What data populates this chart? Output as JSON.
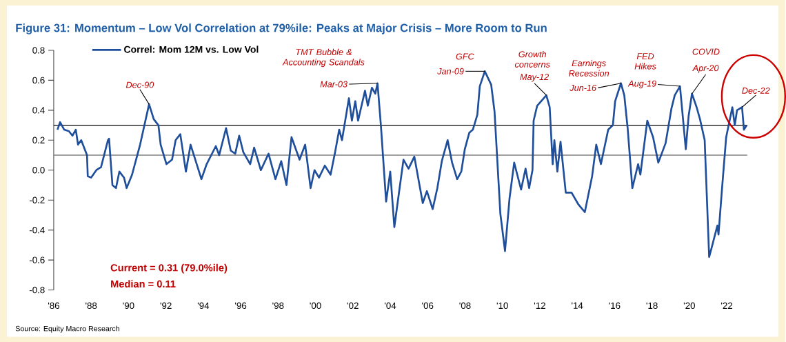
{
  "chart_data": {
    "type": "line",
    "title": "Figure 31: Momentum – Low Vol Correlation at 79%ile: Peaks at Major Crisis – More Room to Run",
    "series": [
      {
        "name": "Correl: Mom 12M vs. Low Vol",
        "color": "#1f4e9a",
        "x": [
          1986.2,
          1986.34,
          1986.56,
          1986.81,
          1987.0,
          1987.18,
          1987.3,
          1987.47,
          1987.78,
          1987.82,
          1988.0,
          1988.28,
          1988.53,
          1988.9,
          1988.96,
          1989.14,
          1989.33,
          1989.51,
          1989.76,
          1989.9,
          1990.19,
          1990.62,
          1991.1,
          1991.35,
          1991.6,
          1991.72,
          1992.03,
          1992.33,
          1992.52,
          1992.77,
          1993.07,
          1993.32,
          1993.9,
          1994.18,
          1994.67,
          1994.85,
          1995.22,
          1995.47,
          1995.71,
          1995.92,
          1996.14,
          1996.51,
          1996.72,
          1997.08,
          1997.49,
          1997.86,
          1998.17,
          1998.45,
          1998.72,
          1999.15,
          1999.45,
          1999.74,
          1999.95,
          2000.19,
          2000.5,
          2000.81,
          2001.05,
          2001.27,
          2001.42,
          2001.79,
          2001.95,
          2002.13,
          2002.28,
          2002.65,
          2002.8,
          2003.02,
          2003.2,
          2003.32,
          2003.5,
          2003.78,
          2004.0,
          2004.22,
          2004.49,
          2004.71,
          2004.98,
          2005.29,
          2005.74,
          2005.96,
          2006.27,
          2006.52,
          2006.76,
          2007.07,
          2007.31,
          2007.58,
          2007.8,
          2007.99,
          2008.23,
          2008.42,
          2008.66,
          2008.79,
          2009.06,
          2009.4,
          2009.58,
          2009.89,
          2010.14,
          2010.38,
          2010.63,
          2011.0,
          2011.24,
          2011.43,
          2011.61,
          2011.67,
          2011.86,
          2012.28,
          2012.35,
          2012.53,
          2012.69,
          2012.78,
          2012.94,
          2013.11,
          2013.39,
          2013.7,
          2014.07,
          2014.41,
          2014.8,
          2015.02,
          2015.27,
          2015.66,
          2015.91,
          2016.03,
          2016.34,
          2016.52,
          2016.7,
          2016.95,
          2017.26,
          2017.38,
          2017.75,
          2018.06,
          2018.34,
          2018.73,
          2019.04,
          2019.22,
          2019.5,
          2019.81,
          2019.96,
          2020.14,
          2020.39,
          2020.57,
          2020.82,
          2021.06,
          2021.19,
          2021.5,
          2021.56,
          2021.75,
          2021.97,
          2022.3,
          2022.43,
          2022.55,
          2022.82,
          2022.92,
          2023.07
        ],
        "values": [
          0.27,
          0.32,
          0.27,
          0.26,
          0.23,
          0.27,
          0.17,
          0.2,
          0.1,
          -0.04,
          -0.05,
          0.0,
          0.02,
          0.2,
          0.21,
          -0.1,
          -0.12,
          -0.01,
          -0.05,
          -0.12,
          -0.03,
          0.17,
          0.44,
          0.34,
          0.3,
          0.17,
          0.04,
          0.07,
          0.2,
          0.24,
          -0.01,
          0.17,
          -0.06,
          0.04,
          0.16,
          0.1,
          0.28,
          0.13,
          0.11,
          0.23,
          0.12,
          0.04,
          0.15,
          0.0,
          0.11,
          -0.06,
          0.06,
          -0.1,
          0.22,
          0.07,
          0.17,
          -0.12,
          0.0,
          -0.05,
          0.03,
          -0.03,
          0.12,
          0.27,
          0.2,
          0.48,
          0.33,
          0.46,
          0.33,
          0.53,
          0.43,
          0.55,
          0.51,
          0.58,
          0.3,
          -0.21,
          -0.01,
          -0.38,
          -0.13,
          0.07,
          0.01,
          0.09,
          -0.22,
          -0.14,
          -0.26,
          -0.12,
          0.06,
          0.2,
          0.05,
          -0.06,
          -0.01,
          0.14,
          0.25,
          0.27,
          0.37,
          0.56,
          0.66,
          0.57,
          0.39,
          -0.29,
          -0.54,
          -0.19,
          0.05,
          -0.13,
          0.01,
          -0.12,
          0.0,
          0.33,
          0.43,
          0.49,
          0.5,
          0.42,
          0.04,
          0.2,
          -0.01,
          0.19,
          -0.15,
          -0.15,
          -0.23,
          -0.28,
          -0.04,
          0.17,
          0.04,
          0.27,
          0.3,
          0.46,
          0.58,
          0.5,
          0.28,
          -0.12,
          0.04,
          -0.03,
          0.33,
          0.22,
          0.05,
          0.18,
          0.41,
          0.5,
          0.56,
          0.14,
          0.36,
          0.51,
          0.42,
          0.34,
          0.2,
          -0.58,
          -0.52,
          -0.37,
          -0.43,
          -0.12,
          0.22,
          0.42,
          0.3,
          0.4,
          0.42,
          0.27,
          0.3
        ]
      }
    ],
    "xlim": [
      1986,
      2023.1
    ],
    "ylim": [
      -0.8,
      0.8
    ],
    "xticks": [
      {
        "value": 1986,
        "label": "'86"
      },
      {
        "value": 1988,
        "label": "'88"
      },
      {
        "value": 1990,
        "label": "'90"
      },
      {
        "value": 1992,
        "label": "'92"
      },
      {
        "value": 1994,
        "label": "'94"
      },
      {
        "value": 1996,
        "label": "'96"
      },
      {
        "value": 1998,
        "label": "'98"
      },
      {
        "value": 2000,
        "label": "'00"
      },
      {
        "value": 2002,
        "label": "'02"
      },
      {
        "value": 2004,
        "label": "'04"
      },
      {
        "value": 2006,
        "label": "'06"
      },
      {
        "value": 2008,
        "label": "'08"
      },
      {
        "value": 2010,
        "label": "'10"
      },
      {
        "value": 2012,
        "label": "'12"
      },
      {
        "value": 2014,
        "label": "'14"
      },
      {
        "value": 2016,
        "label": "'16"
      },
      {
        "value": 2018,
        "label": "'18"
      },
      {
        "value": 2020,
        "label": "'20"
      },
      {
        "value": 2022,
        "label": "'22"
      }
    ],
    "yticks": [
      {
        "value": 0.8,
        "label": "0.8"
      },
      {
        "value": 0.6,
        "label": "0.6"
      },
      {
        "value": 0.4,
        "label": "0.4"
      },
      {
        "value": 0.2,
        "label": "0.2"
      },
      {
        "value": 0.0,
        "label": "0.0"
      },
      {
        "value": -0.2,
        "label": "-0.2"
      },
      {
        "value": -0.4,
        "label": "-0.4"
      },
      {
        "value": -0.6,
        "label": "-0.6"
      },
      {
        "value": -0.8,
        "label": "-0.8"
      }
    ],
    "ref_lines": [
      {
        "axis": "y",
        "value": 0.3,
        "color": "#000000"
      },
      {
        "axis": "y",
        "value": 0.1,
        "color": "#808080"
      }
    ],
    "legend": "top left",
    "grid": false,
    "marker": "none",
    "line_style": "solid",
    "annotations": [
      {
        "text": "Dec-90",
        "x": 1991.1,
        "y": 0.44
      },
      {
        "text": "Mar-03",
        "x": 2003.32,
        "y": 0.58
      },
      {
        "text": "Jan-09",
        "x": 2009.06,
        "y": 0.66
      },
      {
        "text": "May-12",
        "x": 2012.35,
        "y": 0.5
      },
      {
        "text": "Jun-16",
        "x": 2016.34,
        "y": 0.58
      },
      {
        "text": "Aug-19",
        "x": 2019.5,
        "y": 0.56
      },
      {
        "text": "Apr-20",
        "x": 2020.14,
        "y": 0.51
      },
      {
        "text": "Dec-22",
        "x": 2022.82,
        "y": 0.42
      },
      "TMT Bubble & Accounting Scandals",
      "GFC",
      "Growth concerns",
      "Earnings Recession",
      "FED Hikes",
      "COVID",
      "Current = 0.31 (79.0%ile)",
      "Median = 0.11",
      "Source: Equity Macro Research"
    ]
  }
}
